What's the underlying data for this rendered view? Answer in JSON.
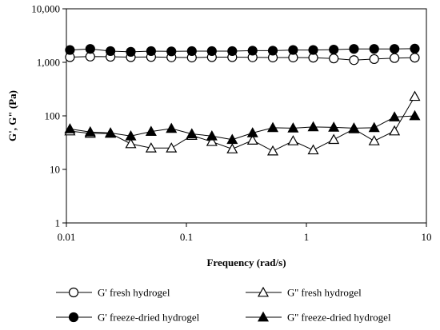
{
  "chart_data": {
    "type": "scatter",
    "xlabel": "Frequency (rad/s)",
    "ylabel": "G', G\" (Pa)",
    "x_scale": "log",
    "y_scale": "log",
    "xlim": [
      0.01,
      10
    ],
    "ylim": [
      1,
      10000
    ],
    "x_ticks": [
      {
        "value": 0.01,
        "label": "0.01"
      },
      {
        "value": 0.1,
        "label": "0.1"
      },
      {
        "value": 1,
        "label": "1"
      },
      {
        "value": 10,
        "label": "10"
      }
    ],
    "y_ticks": [
      {
        "value": 1,
        "label": "1"
      },
      {
        "value": 10,
        "label": "10"
      },
      {
        "value": 100,
        "label": "100"
      },
      {
        "value": 1000,
        "label": "1,000"
      },
      {
        "value": 10000,
        "label": "10,000"
      }
    ],
    "grid": false,
    "legend_position": "bottom",
    "x": [
      0.0107,
      0.0158,
      0.0233,
      0.0344,
      0.0508,
      0.075,
      0.111,
      0.163,
      0.241,
      0.356,
      0.525,
      0.775,
      1.14,
      1.69,
      2.49,
      3.67,
      5.42,
      8.0
    ],
    "series": [
      {
        "name": "G' fresh hydrogel",
        "marker": "circle-open",
        "values": [
          1250,
          1280,
          1270,
          1250,
          1260,
          1240,
          1230,
          1250,
          1250,
          1240,
          1230,
          1230,
          1220,
          1180,
          1100,
          1150,
          1200,
          1220
        ]
      },
      {
        "name": "G'' fresh hydrogel",
        "marker": "triangle-open",
        "values": [
          52,
          47,
          47,
          30,
          25,
          25,
          43,
          33,
          24,
          35,
          22,
          34,
          23,
          36,
          57,
          34,
          52,
          230
        ]
      },
      {
        "name": "G' freeze-dried hydrogel",
        "marker": "circle-filled",
        "values": [
          1700,
          1780,
          1620,
          1570,
          1620,
          1600,
          1620,
          1620,
          1620,
          1650,
          1650,
          1700,
          1700,
          1730,
          1780,
          1780,
          1780,
          1800
        ]
      },
      {
        "name": "G'' freeze-dried hydrogel",
        "marker": "triangle-filled",
        "values": [
          57,
          50,
          48,
          42,
          51,
          58,
          46,
          42,
          36,
          48,
          60,
          59,
          62,
          61,
          59,
          60,
          95,
          100
        ]
      }
    ]
  }
}
